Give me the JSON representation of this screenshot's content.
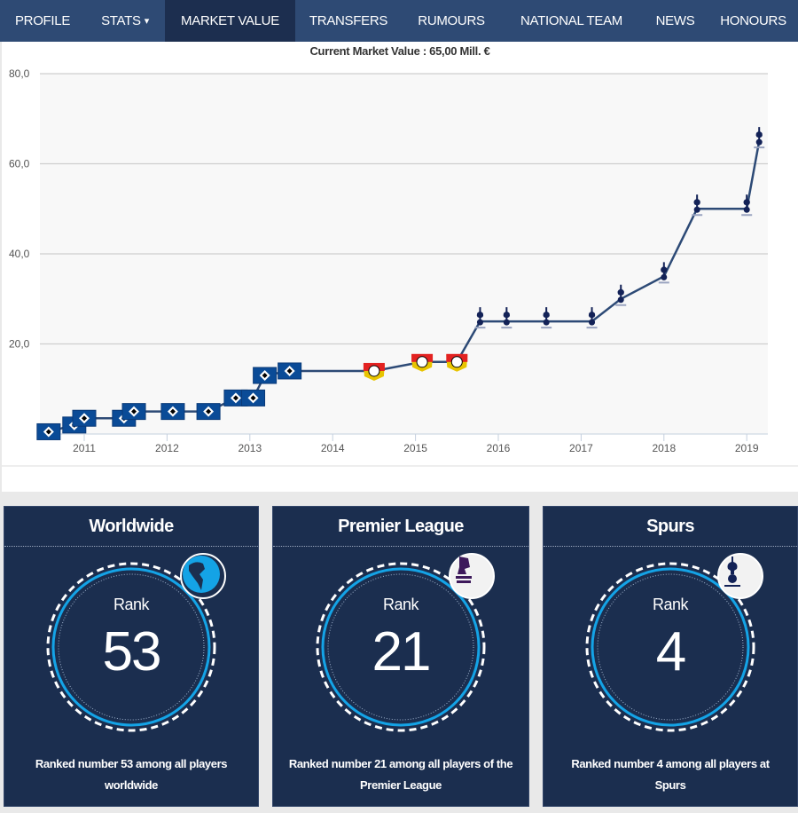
{
  "nav": {
    "items": [
      {
        "label": "PROFILE"
      },
      {
        "label": "STATS",
        "caret": "▾"
      },
      {
        "label": "MARKET VALUE",
        "active": true
      },
      {
        "label": "TRANSFERS"
      },
      {
        "label": "RUMOURS"
      },
      {
        "label": "NATIONAL TEAM"
      },
      {
        "label": "NEWS"
      },
      {
        "label": "HONOURS"
      }
    ]
  },
  "chart_title": "Current Market Value : 65,00 Mill. €",
  "chart_data": {
    "type": "line",
    "title": "Current Market Value : 65,00 Mill. €",
    "xlabel": "",
    "ylabel": "",
    "ylim": [
      0,
      80
    ],
    "xlim": [
      2010.5,
      2019.25
    ],
    "y_ticks": [
      "20,0",
      "40,0",
      "60,0",
      "80,0"
    ],
    "y_tick_values": [
      20,
      40,
      60,
      80
    ],
    "x_ticks": [
      "2011",
      "2012",
      "2013",
      "2014",
      "2015",
      "2016",
      "2017",
      "2018",
      "2019"
    ],
    "grid": true,
    "legend": "none",
    "line_color": "#2d4a76",
    "clubs": {
      "hsv": {
        "name": "Hamburger SV",
        "color": "#0a4b97"
      },
      "b04": {
        "name": "Bayer Leverkusen",
        "color": "#e32221"
      },
      "tot": {
        "name": "Tottenham Hotspur",
        "color": "#132257"
      }
    },
    "points": [
      {
        "x": 2010.57,
        "y": 0.5,
        "club": "hsv"
      },
      {
        "x": 2010.88,
        "y": 2,
        "club": "hsv"
      },
      {
        "x": 2011.0,
        "y": 3.5,
        "club": "hsv"
      },
      {
        "x": 2011.48,
        "y": 3.5,
        "club": "hsv"
      },
      {
        "x": 2011.6,
        "y": 5,
        "club": "hsv"
      },
      {
        "x": 2012.07,
        "y": 5,
        "club": "hsv"
      },
      {
        "x": 2012.5,
        "y": 5,
        "club": "hsv"
      },
      {
        "x": 2012.83,
        "y": 8,
        "club": "hsv"
      },
      {
        "x": 2013.04,
        "y": 8,
        "club": "hsv"
      },
      {
        "x": 2013.18,
        "y": 13,
        "club": "hsv"
      },
      {
        "x": 2013.48,
        "y": 14,
        "club": "hsv"
      },
      {
        "x": 2014.5,
        "y": 14,
        "club": "b04"
      },
      {
        "x": 2015.08,
        "y": 16,
        "club": "b04"
      },
      {
        "x": 2015.5,
        "y": 16,
        "club": "b04"
      },
      {
        "x": 2015.78,
        "y": 25,
        "club": "tot"
      },
      {
        "x": 2016.1,
        "y": 25,
        "club": "tot"
      },
      {
        "x": 2016.58,
        "y": 25,
        "club": "tot"
      },
      {
        "x": 2017.13,
        "y": 25,
        "club": "tot"
      },
      {
        "x": 2017.48,
        "y": 30,
        "club": "tot"
      },
      {
        "x": 2018.0,
        "y": 35,
        "club": "tot"
      },
      {
        "x": 2018.4,
        "y": 50,
        "club": "tot"
      },
      {
        "x": 2019.0,
        "y": 50,
        "club": "tot"
      },
      {
        "x": 2019.15,
        "y": 65,
        "club": "tot"
      }
    ]
  },
  "cards": [
    {
      "title": "Worldwide",
      "rank_label": "Rank",
      "rank": "53",
      "icon": "globe-icon",
      "description": "Ranked number 53 among all players worldwide"
    },
    {
      "title": "Premier League",
      "rank_label": "Rank",
      "rank": "21",
      "icon": "premier-league-logo",
      "description": "Ranked number 21 among all players of the Premier League"
    },
    {
      "title": "Spurs",
      "rank_label": "Rank",
      "rank": "4",
      "icon": "tottenham-crest",
      "description": "Ranked number 4 among all players at Spurs"
    }
  ],
  "colors": {
    "nav_bg": "#2e4a74",
    "nav_active": "#1c2e4f",
    "card_bg": "#1b2e4f",
    "ring_blue": "#14a3e6"
  }
}
